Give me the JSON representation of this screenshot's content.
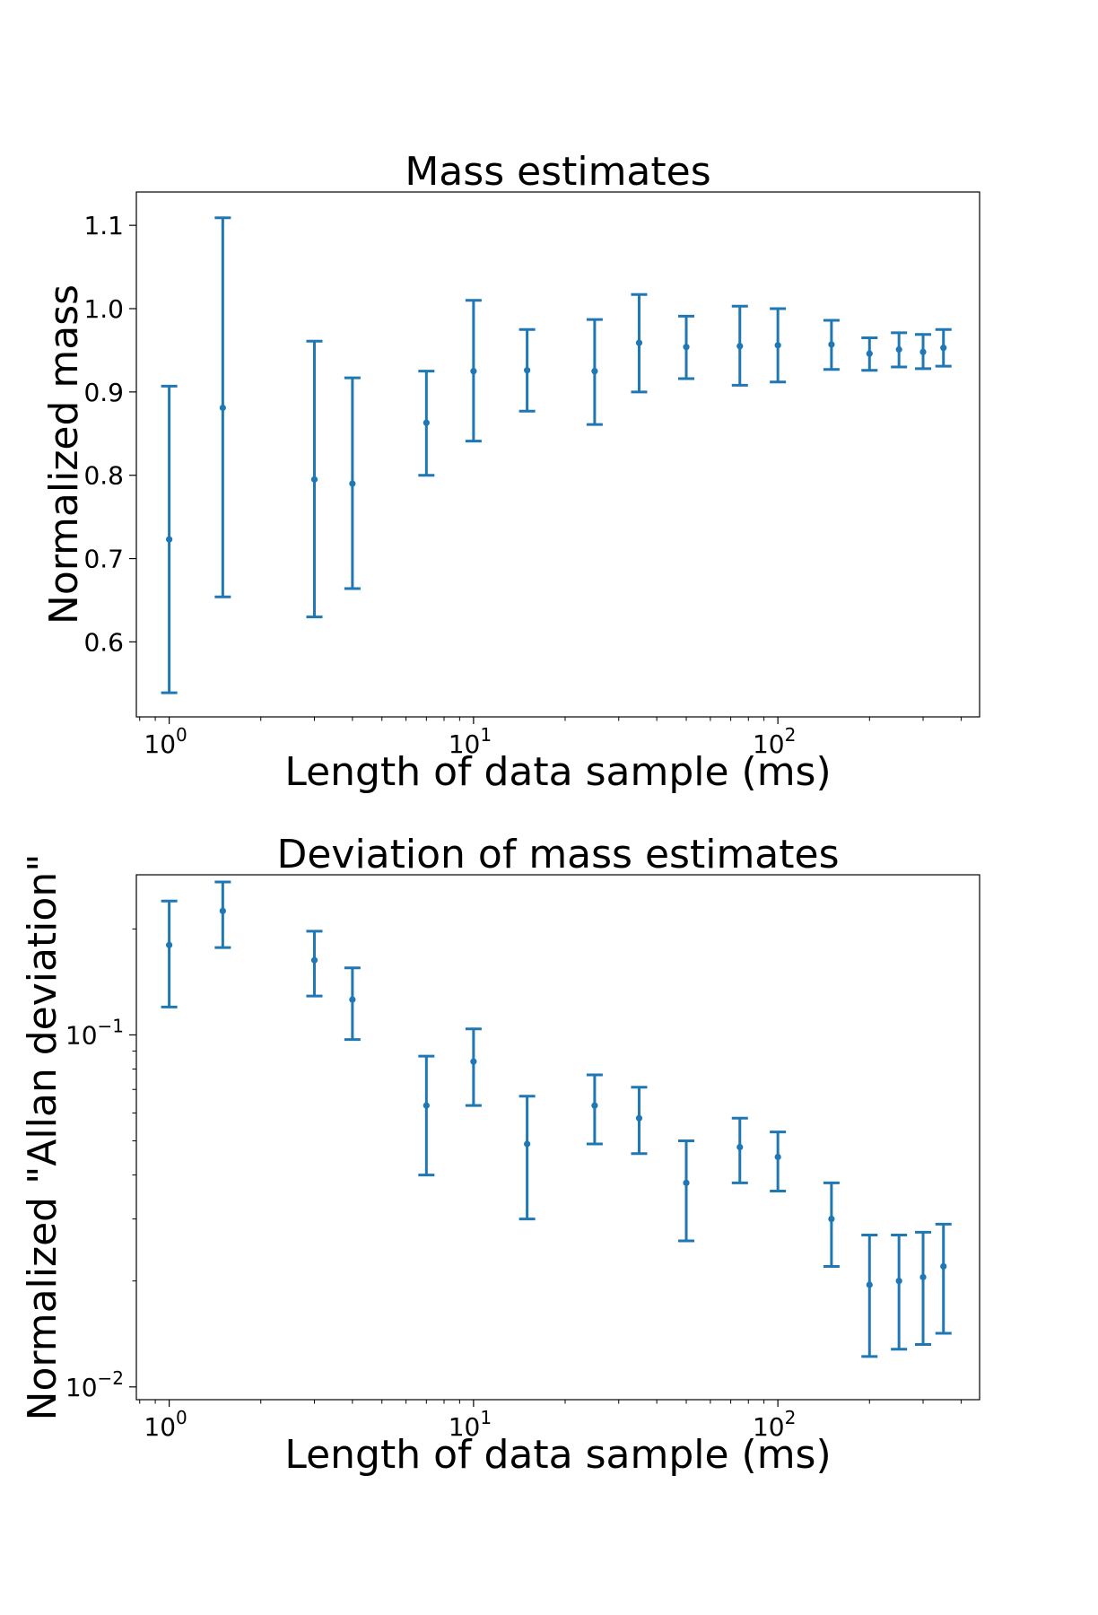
{
  "chart_data": [
    {
      "type": "scatter",
      "title": "Mass estimates",
      "xlabel": "Length of data sample (ms)",
      "ylabel": "Normalized mass",
      "xscale": "log",
      "yscale": "linear",
      "xlim": [
        0.78,
        460
      ],
      "ylim": [
        0.51,
        1.14
      ],
      "grid": false,
      "color": "#1f77b4",
      "x_ticks": [
        {
          "value": 1,
          "base": "10",
          "exp": "0"
        },
        {
          "value": 10,
          "base": "10",
          "exp": "1"
        },
        {
          "value": 100,
          "base": "10",
          "exp": "2"
        }
      ],
      "y_ticks": [
        {
          "value": 0.6,
          "label": "0.6"
        },
        {
          "value": 0.7,
          "label": "0.7"
        },
        {
          "value": 0.8,
          "label": "0.8"
        },
        {
          "value": 0.9,
          "label": "0.9"
        },
        {
          "value": 1.0,
          "label": "1.0"
        },
        {
          "value": 1.1,
          "label": "1.1"
        }
      ],
      "points": [
        {
          "x": 1,
          "y": 0.723,
          "y_low": 0.539,
          "y_high": 0.907
        },
        {
          "x": 1.5,
          "y": 0.881,
          "y_low": 0.654,
          "y_high": 1.109
        },
        {
          "x": 3,
          "y": 0.795,
          "y_low": 0.63,
          "y_high": 0.961
        },
        {
          "x": 4,
          "y": 0.79,
          "y_low": 0.664,
          "y_high": 0.917
        },
        {
          "x": 7,
          "y": 0.863,
          "y_low": 0.8,
          "y_high": 0.925
        },
        {
          "x": 10,
          "y": 0.925,
          "y_low": 0.841,
          "y_high": 1.01
        },
        {
          "x": 15,
          "y": 0.926,
          "y_low": 0.877,
          "y_high": 0.975
        },
        {
          "x": 25,
          "y": 0.925,
          "y_low": 0.861,
          "y_high": 0.987
        },
        {
          "x": 35,
          "y": 0.959,
          "y_low": 0.9,
          "y_high": 1.017
        },
        {
          "x": 50,
          "y": 0.954,
          "y_low": 0.916,
          "y_high": 0.991
        },
        {
          "x": 75,
          "y": 0.955,
          "y_low": 0.908,
          "y_high": 1.003
        },
        {
          "x": 100,
          "y": 0.956,
          "y_low": 0.912,
          "y_high": 1.0
        },
        {
          "x": 150,
          "y": 0.957,
          "y_low": 0.927,
          "y_high": 0.986
        },
        {
          "x": 200,
          "y": 0.946,
          "y_low": 0.926,
          "y_high": 0.965
        },
        {
          "x": 250,
          "y": 0.951,
          "y_low": 0.93,
          "y_high": 0.971
        },
        {
          "x": 300,
          "y": 0.948,
          "y_low": 0.928,
          "y_high": 0.969
        },
        {
          "x": 350,
          "y": 0.953,
          "y_low": 0.931,
          "y_high": 0.975
        }
      ]
    },
    {
      "type": "scatter",
      "title": "Deviation of mass estimates",
      "xlabel": "Length of data sample (ms)",
      "ylabel": "Normalized \"Allan deviation\"",
      "xscale": "log",
      "yscale": "log",
      "xlim": [
        0.78,
        460
      ],
      "ylim": [
        0.0092,
        0.285
      ],
      "grid": false,
      "color": "#1f77b4",
      "x_ticks": [
        {
          "value": 1,
          "base": "10",
          "exp": "0"
        },
        {
          "value": 10,
          "base": "10",
          "exp": "1"
        },
        {
          "value": 100,
          "base": "10",
          "exp": "2"
        }
      ],
      "y_ticks": [
        {
          "value": 0.01,
          "base": "10",
          "exp": "−2"
        },
        {
          "value": 0.1,
          "base": "10",
          "exp": "−1"
        }
      ],
      "points": [
        {
          "x": 1,
          "y": 0.18,
          "y_low": 0.12,
          "y_high": 0.24
        },
        {
          "x": 1.5,
          "y": 0.225,
          "y_low": 0.177,
          "y_high": 0.272
        },
        {
          "x": 3,
          "y": 0.163,
          "y_low": 0.129,
          "y_high": 0.197
        },
        {
          "x": 4,
          "y": 0.126,
          "y_low": 0.097,
          "y_high": 0.155
        },
        {
          "x": 7,
          "y": 0.063,
          "y_low": 0.04,
          "y_high": 0.087
        },
        {
          "x": 10,
          "y": 0.084,
          "y_low": 0.063,
          "y_high": 0.104
        },
        {
          "x": 15,
          "y": 0.049,
          "y_low": 0.03,
          "y_high": 0.067
        },
        {
          "x": 25,
          "y": 0.063,
          "y_low": 0.049,
          "y_high": 0.077
        },
        {
          "x": 35,
          "y": 0.058,
          "y_low": 0.046,
          "y_high": 0.071
        },
        {
          "x": 50,
          "y": 0.038,
          "y_low": 0.026,
          "y_high": 0.05
        },
        {
          "x": 75,
          "y": 0.048,
          "y_low": 0.038,
          "y_high": 0.058
        },
        {
          "x": 100,
          "y": 0.045,
          "y_low": 0.036,
          "y_high": 0.053
        },
        {
          "x": 150,
          "y": 0.03,
          "y_low": 0.022,
          "y_high": 0.038
        },
        {
          "x": 200,
          "y": 0.0195,
          "y_low": 0.0122,
          "y_high": 0.027
        },
        {
          "x": 250,
          "y": 0.02,
          "y_low": 0.0128,
          "y_high": 0.027
        },
        {
          "x": 300,
          "y": 0.0205,
          "y_low": 0.0132,
          "y_high": 0.0275
        },
        {
          "x": 350,
          "y": 0.022,
          "y_low": 0.0142,
          "y_high": 0.029
        }
      ]
    }
  ]
}
